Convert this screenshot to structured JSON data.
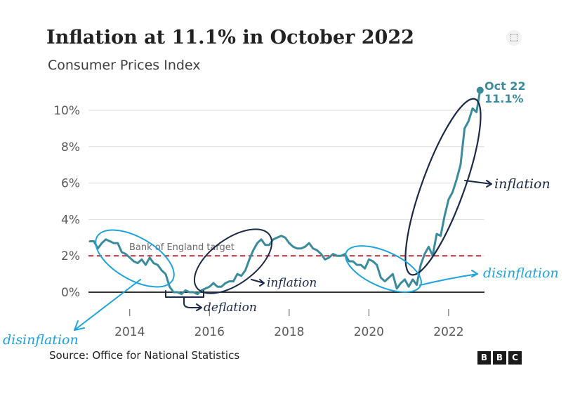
{
  "header": {
    "title": "Inflation at 11.1% in October 2022",
    "subtitle": "Consumer Prices Index",
    "expand_icon": "expand-icon"
  },
  "footer": {
    "source": "Source: Office for National Statistics",
    "logo_letters": [
      "B",
      "B",
      "C"
    ]
  },
  "colors": {
    "line": "#3a8c9c",
    "target": "#b2313a",
    "annotation_dark": "#1c2a4a",
    "annotation_blue": "#1fa3dc"
  },
  "chart_data": {
    "type": "line",
    "title": "Inflation at 11.1% in October 2022",
    "subtitle": "Consumer Prices Index",
    "xlabel": "",
    "ylabel": "",
    "xlim": [
      2013.0,
      2022.9
    ],
    "ylim": [
      0,
      11
    ],
    "y_ticks": [
      {
        "value": 0,
        "label": "0%"
      },
      {
        "value": 2,
        "label": "2%"
      },
      {
        "value": 4,
        "label": "4%"
      },
      {
        "value": 6,
        "label": "6%"
      },
      {
        "value": 8,
        "label": "8%"
      },
      {
        "value": 10,
        "label": "10%"
      }
    ],
    "x_ticks": [
      {
        "value": 2014,
        "label": "2014"
      },
      {
        "value": 2016,
        "label": "2016"
      },
      {
        "value": 2018,
        "label": "2018"
      },
      {
        "value": 2020,
        "label": "2020"
      },
      {
        "value": 2022,
        "label": "2022"
      }
    ],
    "grid": true,
    "reference_line": {
      "value": 2,
      "label": "Bank of England target"
    },
    "end_label": {
      "date": "Oct 22",
      "value_label": "11.1%",
      "x": 2022.79,
      "y": 11.1
    },
    "series": [
      {
        "name": "CPI",
        "points": [
          [
            2013.0,
            2.8
          ],
          [
            2013.1,
            2.8
          ],
          [
            2013.2,
            2.4
          ],
          [
            2013.3,
            2.7
          ],
          [
            2013.4,
            2.9
          ],
          [
            2013.5,
            2.8
          ],
          [
            2013.6,
            2.7
          ],
          [
            2013.7,
            2.7
          ],
          [
            2013.8,
            2.2
          ],
          [
            2013.9,
            2.1
          ],
          [
            2014.0,
            1.9
          ],
          [
            2014.1,
            1.7
          ],
          [
            2014.2,
            1.6
          ],
          [
            2014.3,
            1.8
          ],
          [
            2014.4,
            1.5
          ],
          [
            2014.5,
            1.9
          ],
          [
            2014.6,
            1.6
          ],
          [
            2014.7,
            1.5
          ],
          [
            2014.8,
            1.2
          ],
          [
            2014.9,
            1.0
          ],
          [
            2015.0,
            0.3
          ],
          [
            2015.1,
            0.0
          ],
          [
            2015.2,
            0.0
          ],
          [
            2015.3,
            -0.1
          ],
          [
            2015.4,
            0.1
          ],
          [
            2015.5,
            0.0
          ],
          [
            2015.6,
            0.0
          ],
          [
            2015.7,
            -0.1
          ],
          [
            2015.8,
            0.1
          ],
          [
            2015.9,
            0.2
          ],
          [
            2016.0,
            0.3
          ],
          [
            2016.1,
            0.5
          ],
          [
            2016.2,
            0.3
          ],
          [
            2016.3,
            0.3
          ],
          [
            2016.4,
            0.5
          ],
          [
            2016.5,
            0.6
          ],
          [
            2016.6,
            0.6
          ],
          [
            2016.7,
            1.0
          ],
          [
            2016.8,
            0.9
          ],
          [
            2016.9,
            1.2
          ],
          [
            2017.0,
            1.8
          ],
          [
            2017.1,
            2.3
          ],
          [
            2017.2,
            2.7
          ],
          [
            2017.3,
            2.9
          ],
          [
            2017.4,
            2.6
          ],
          [
            2017.5,
            2.6
          ],
          [
            2017.6,
            2.9
          ],
          [
            2017.7,
            3.0
          ],
          [
            2017.8,
            3.1
          ],
          [
            2017.9,
            3.0
          ],
          [
            2018.0,
            2.7
          ],
          [
            2018.1,
            2.5
          ],
          [
            2018.2,
            2.4
          ],
          [
            2018.3,
            2.4
          ],
          [
            2018.4,
            2.5
          ],
          [
            2018.5,
            2.7
          ],
          [
            2018.6,
            2.4
          ],
          [
            2018.7,
            2.3
          ],
          [
            2018.8,
            2.1
          ],
          [
            2018.9,
            1.8
          ],
          [
            2019.0,
            1.9
          ],
          [
            2019.1,
            2.1
          ],
          [
            2019.2,
            2.0
          ],
          [
            2019.3,
            2.0
          ],
          [
            2019.4,
            2.1
          ],
          [
            2019.5,
            1.7
          ],
          [
            2019.6,
            1.7
          ],
          [
            2019.7,
            1.5
          ],
          [
            2019.8,
            1.5
          ],
          [
            2019.9,
            1.3
          ],
          [
            2020.0,
            1.8
          ],
          [
            2020.1,
            1.7
          ],
          [
            2020.2,
            1.5
          ],
          [
            2020.3,
            0.8
          ],
          [
            2020.4,
            0.6
          ],
          [
            2020.5,
            0.8
          ],
          [
            2020.6,
            1.0
          ],
          [
            2020.7,
            0.2
          ],
          [
            2020.8,
            0.5
          ],
          [
            2020.9,
            0.7
          ],
          [
            2021.0,
            0.3
          ],
          [
            2021.1,
            0.7
          ],
          [
            2021.2,
            0.4
          ],
          [
            2021.3,
            1.5
          ],
          [
            2021.4,
            2.1
          ],
          [
            2021.5,
            2.5
          ],
          [
            2021.6,
            2.0
          ],
          [
            2021.7,
            3.2
          ],
          [
            2021.8,
            3.1
          ],
          [
            2021.9,
            4.2
          ],
          [
            2022.0,
            5.1
          ],
          [
            2022.1,
            5.5
          ],
          [
            2022.2,
            6.2
          ],
          [
            2022.3,
            7.0
          ],
          [
            2022.4,
            9.0
          ],
          [
            2022.5,
            9.4
          ],
          [
            2022.6,
            10.1
          ],
          [
            2022.7,
            9.9
          ],
          [
            2022.79,
            11.1
          ]
        ]
      }
    ]
  },
  "annotations": {
    "inflation_2016": "inflation",
    "deflation": "deflation",
    "disinflation_left": "disinflation",
    "disinflation_right": "disinflation",
    "inflation_2022": "inflation"
  }
}
